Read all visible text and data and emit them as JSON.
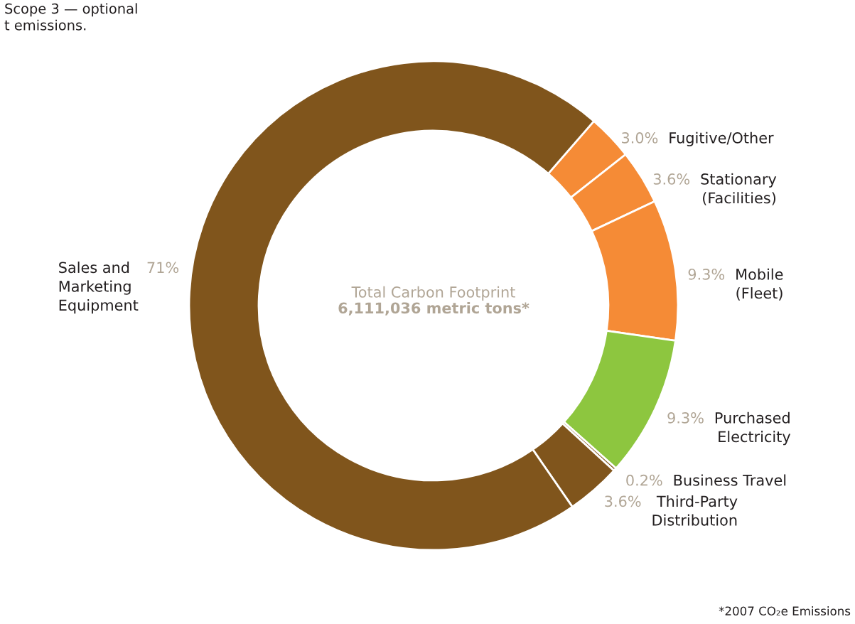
{
  "chart_data": {
    "type": "donut",
    "categories": [
      "Fugitive/Other",
      "Stationary\n(Facilities)",
      "Mobile\n(Fleet)",
      "Purchased\nElectricity",
      "Business Travel",
      "Third-Party\nDistribution",
      "Sales and\nMarketing\nEquipment"
    ],
    "values": [
      3.0,
      3.6,
      9.3,
      9.3,
      0.2,
      3.6,
      71
    ],
    "value_labels": [
      "3.0%",
      "3.6%",
      "9.3%",
      "9.3%",
      "0.2%",
      "3.6%",
      "71%"
    ],
    "colors": [
      "#f58b36",
      "#f58b36",
      "#f58b36",
      "#8dc63f",
      "#80551c",
      "#80551c",
      "#80551c"
    ],
    "annotations": [
      "Total Carbon Footprint",
      "6,111,036 metric tons*",
      "*2007 CO₂e Emissions",
      "Scope 3 — optional\nt emissions."
    ],
    "legend": false
  }
}
